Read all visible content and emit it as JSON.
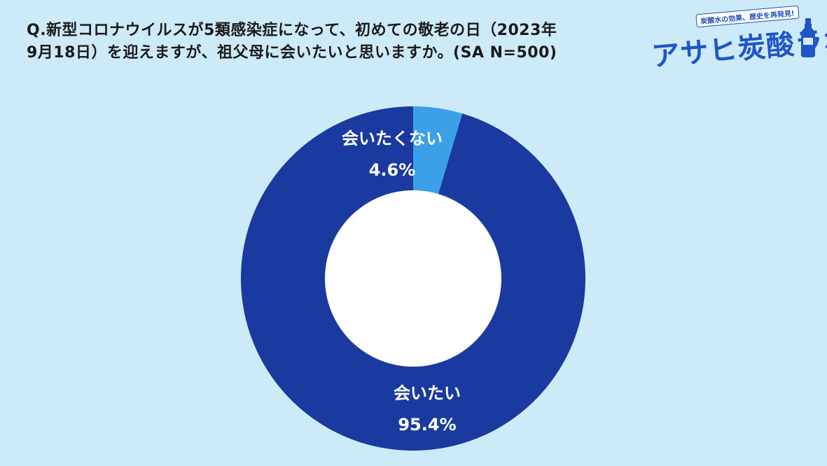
{
  "question": {
    "line1": "Q.新型コロナウイルスが5類感染症になって、初めての敬老の日（2023年",
    "line2": "9月18日）を迎えますが、祖父母に会いたいと思いますか。(SA N=500)"
  },
  "logo": {
    "tagline": "炭酸水の効果、歴史を再発見!",
    "name": "アサヒ炭酸ラボ"
  },
  "colors": {
    "background": "#cdeaf8",
    "main_slice": "#1a3aa0",
    "minor_slice": "#3ba0e8",
    "hole": "#ffffff"
  },
  "chart_data": {
    "type": "pie",
    "donut": true,
    "categories": [
      "会いたい",
      "会いたくない"
    ],
    "values": [
      95.4,
      4.6
    ],
    "value_labels": [
      "95.4%",
      "4.6%"
    ],
    "title": "Q.新型コロナウイルスが5類感染症になって、初めての敬老の日（2023年9月18日）を迎えますが、祖父母に会いたいと思いますか。(SA N=500)"
  }
}
